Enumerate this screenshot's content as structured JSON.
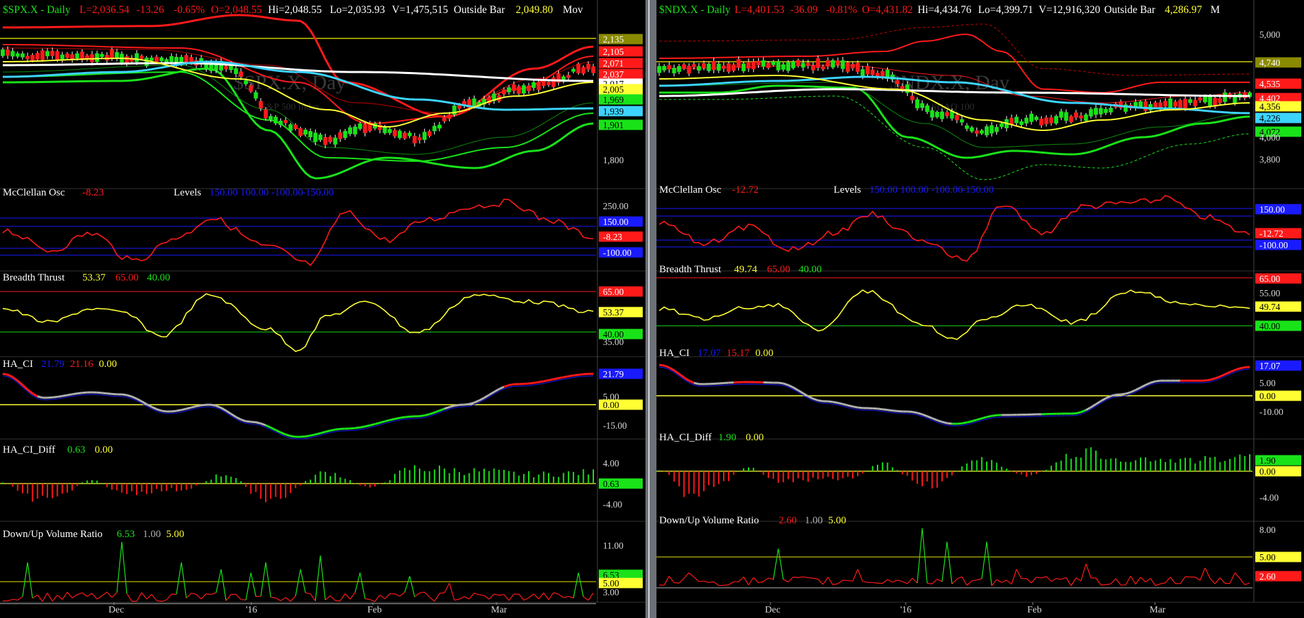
{
  "colors": {
    "bg": "#000000",
    "up": "#19e219",
    "down": "#ff1a1a",
    "sma_white": "#ffffff",
    "sma_cyan": "#3cd4ff",
    "yellow": "#ffff33",
    "olive": "#9c9a00",
    "blue_lvl": "#1a1aff",
    "grid_text": "#d9d9d9",
    "gray": "#b0b0b0"
  },
  "charts": [
    {
      "id": "spx",
      "header": {
        "symbol": "$SPX.X - Daily",
        "last": "L=2,036.54",
        "change": "-13.26",
        "pct": "-0.65%",
        "open": "O=2,048.55",
        "hi": "Hi=2,048.55",
        "lo": "Lo=2,035.93",
        "vol": "V=1,475,515",
        "bar_type": "Outside Bar",
        "ma_val": "2,049.80",
        "ma_name": "Mov"
      },
      "watermark": {
        "title": "$SPX.X, Day",
        "subtitle": "S&P 500 Index"
      },
      "price_axis": [
        "2,135",
        "2,105",
        "2,071",
        "2,037",
        "2,017",
        "2,005",
        "1,969",
        "1,939",
        "1,901",
        "1,800"
      ],
      "price_badges": [
        {
          "text": "2,135",
          "color": "#8a8a00",
          "fg": "#ffffff"
        },
        {
          "text": "2,105",
          "color": "#ff1a1a",
          "fg": "#ffffff"
        },
        {
          "text": "2,071",
          "color": "#ff1a1a",
          "fg": "#ffffff"
        },
        {
          "text": "2,037",
          "color": "#ff1a1a",
          "fg": "#ffffff"
        },
        {
          "text": "2,017",
          "color": "#ffffff",
          "fg": "#000000"
        },
        {
          "text": "2,005",
          "color": "#ffff33",
          "fg": "#000000"
        },
        {
          "text": "1,969",
          "color": "#19e219",
          "fg": "#000000"
        },
        {
          "text": "1,939",
          "color": "#3cd4ff",
          "fg": "#000000"
        },
        {
          "text": "1,901",
          "color": "#19e219",
          "fg": "#000000"
        }
      ],
      "price_plain": "1,800",
      "mcclellan": {
        "label": "McClellan Osc",
        "value": "-8.23",
        "levels_label": "Levels",
        "levels": [
          "150.00",
          "100.00",
          "-100.00",
          "-150.00"
        ],
        "axis": [
          "250.00"
        ],
        "badges": [
          "150.00",
          "-8.23",
          "-100.00"
        ]
      },
      "breadth": {
        "label": "Breadth Thrust",
        "value": "53.37",
        "l1": "65.00",
        "l2": "40.00",
        "badges": [
          "65.00",
          "53.37",
          "40.00"
        ],
        "axis": [
          "35.00"
        ]
      },
      "haci": {
        "label": "HA_CI",
        "v1": "21.79",
        "v2": "21.16",
        "v3": "0.00",
        "axis": [
          "5.00",
          "-15.00"
        ],
        "badges": [
          "21.79",
          "0.00"
        ]
      },
      "hacidiff": {
        "label": "HA_CI_Diff",
        "v1": "0.63",
        "v2": "0.00",
        "axis": [
          "4.00",
          "-4.00"
        ],
        "badges": [
          "0.63"
        ]
      },
      "dvr": {
        "label": "Down/Up Volume Ratio",
        "v1": "6.53",
        "v2": "1.00",
        "v3": "5.00",
        "axis": [
          "11.00",
          "3.00"
        ],
        "badges": [
          "6.53",
          "5.00"
        ]
      },
      "date_axis": [
        "Dec",
        "'16",
        "Feb",
        "Mar"
      ],
      "chart_data": {
        "type": "line",
        "title": "$SPX.X - Daily",
        "series": [
          {
            "name": "McClellan Osc",
            "last": -8.23
          },
          {
            "name": "Breadth Thrust",
            "last": 53.37
          },
          {
            "name": "HA_CI",
            "last": 21.79
          },
          {
            "name": "HA_CI_Diff",
            "last": 0.63
          },
          {
            "name": "Down/Up Volume Ratio",
            "last": 6.53
          }
        ],
        "price_range": [
          1780,
          2160
        ]
      }
    },
    {
      "id": "ndx",
      "header": {
        "symbol": "$NDX.X - Daily",
        "last": "L=4,401.53",
        "change": "-36.09",
        "pct": "-0.81%",
        "open": "O=4,431.82",
        "hi": "Hi=4,434.76",
        "lo": "Lo=4,399.71",
        "vol": "V=12,916,320",
        "bar_type": "Outside Bar",
        "ma_val": "4,286.97",
        "ma_name": "M"
      },
      "watermark": {
        "title": "$NDX.X, Day",
        "subtitle": "NASDAQ 100"
      },
      "price_axis": [
        "5,000",
        "4,740",
        "4,535",
        "4,402",
        "4,356",
        "4,226",
        "4,072",
        "4,000",
        "3,800"
      ],
      "price_badges": [
        {
          "text": "4,740",
          "color": "#8a8a00",
          "fg": "#ffffff"
        },
        {
          "text": "4,535",
          "color": "#ff1a1a",
          "fg": "#ffffff"
        },
        {
          "text": "4,402",
          "color": "#ff1a1a",
          "fg": "#ffffff"
        },
        {
          "text": "4,356",
          "color": "#ffff33",
          "fg": "#000000"
        },
        {
          "text": "4,226",
          "color": "#3cd4ff",
          "fg": "#000000"
        },
        {
          "text": "4,072",
          "color": "#19e219",
          "fg": "#000000"
        }
      ],
      "price_plain": "4,000",
      "price_plain2": "3,800",
      "price_plain3": "5,000",
      "mcclellan": {
        "label": "McClellan Osc",
        "value": "-12.72",
        "levels_label": "Levels",
        "levels": [
          "150.00",
          "100.00",
          "-100.00",
          "-150.00"
        ],
        "axis": [],
        "badges": [
          "150.00",
          "-12.72",
          "-100.00"
        ]
      },
      "breadth": {
        "label": "Breadth Thrust",
        "value": "49.74",
        "l1": "65.00",
        "l2": "40.00",
        "badges": [
          "65.00",
          "49.74",
          "40.00"
        ],
        "axis": [
          "55.00"
        ]
      },
      "haci": {
        "label": "HA_CI",
        "v1": "17.07",
        "v2": "15.17",
        "v3": "0.00",
        "axis": [
          "5.00",
          "-10.00"
        ],
        "badges": [
          "17.07",
          "0.00"
        ]
      },
      "hacidiff": {
        "label": "HA_CI_Diff",
        "v1": "1.90",
        "v2": "0.00",
        "axis": [
          "-4.00"
        ],
        "badges": [
          "1.90",
          "0.00"
        ]
      },
      "dvr": {
        "label": "Down/Up Volume Ratio",
        "v1": "2.60",
        "v2": "1.00",
        "v3": "5.00",
        "axis": [
          "8.00"
        ],
        "badges": [
          "5.00",
          "2.60"
        ]
      },
      "date_axis": [
        "Dec",
        "'16",
        "Feb",
        "Mar"
      ],
      "chart_data": {
        "type": "line",
        "title": "$NDX.X - Daily",
        "series": [
          {
            "name": "McClellan Osc",
            "last": -12.72
          },
          {
            "name": "Breadth Thrust",
            "last": 49.74
          },
          {
            "name": "HA_CI",
            "last": 17.07
          },
          {
            "name": "HA_CI_Diff",
            "last": 1.9
          },
          {
            "name": "Down/Up Volume Ratio",
            "last": 2.6
          }
        ],
        "price_range": [
          3700,
          5100
        ]
      }
    }
  ]
}
